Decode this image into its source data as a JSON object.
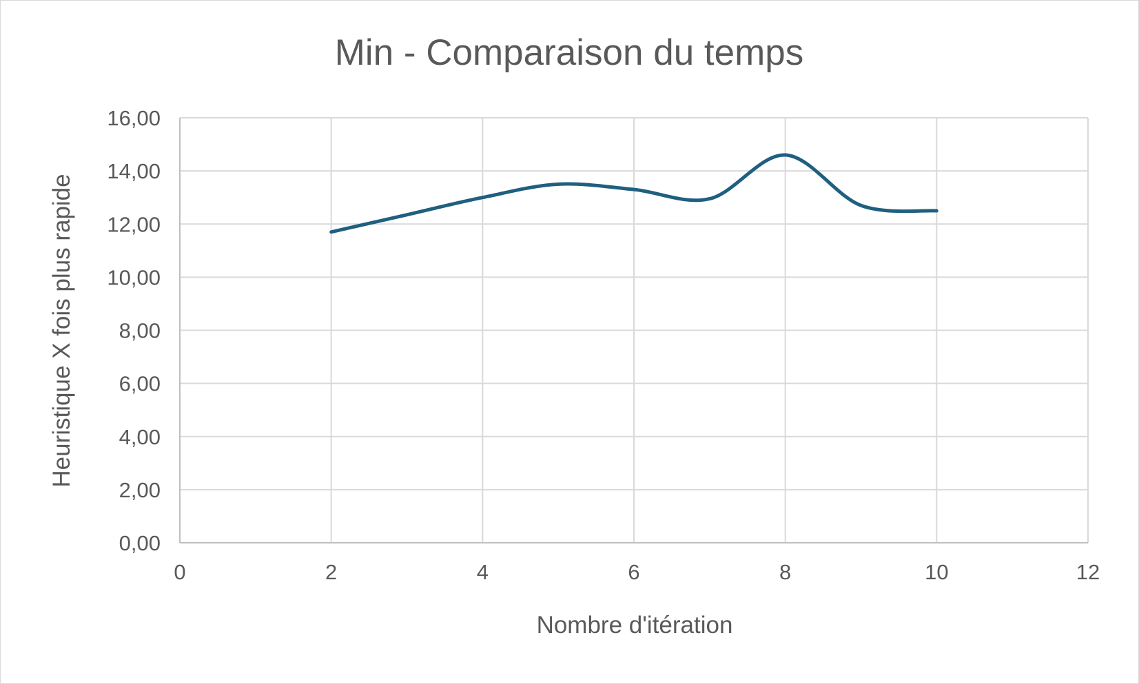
{
  "chart_data": {
    "type": "line",
    "title": "Min - Comparaison du temps",
    "xlabel": "Nombre d'itération",
    "ylabel": "Heuristique X fois plus rapide",
    "xlim": [
      0,
      12
    ],
    "ylim": [
      0,
      16
    ],
    "x_ticks": [
      "0",
      "2",
      "4",
      "6",
      "8",
      "10",
      "12"
    ],
    "y_ticks": [
      "0,00",
      "2,00",
      "4,00",
      "6,00",
      "8,00",
      "10,00",
      "12,00",
      "14,00",
      "16,00"
    ],
    "grid": true,
    "smooth": true,
    "series": [
      {
        "color": "#1f5f7f",
        "points": [
          {
            "x": 2,
            "y": 11.7
          },
          {
            "x": 3,
            "y": 12.35
          },
          {
            "x": 4,
            "y": 13.0
          },
          {
            "x": 5,
            "y": 13.5
          },
          {
            "x": 6,
            "y": 13.3
          },
          {
            "x": 7,
            "y": 12.95
          },
          {
            "x": 8,
            "y": 14.6
          },
          {
            "x": 9,
            "y": 12.7
          },
          {
            "x": 10,
            "y": 12.5
          }
        ]
      }
    ]
  }
}
